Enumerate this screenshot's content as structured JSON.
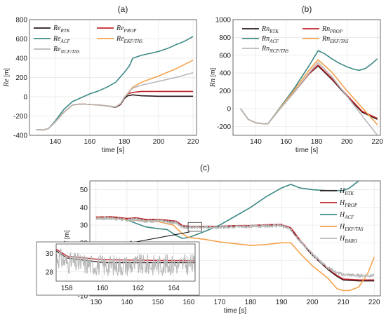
{
  "chart_data": [
    {
      "panel": "(a)",
      "type": "line",
      "xlabel": "time [s]",
      "ylabel": "Re [m]",
      "ylabel_var": "Re",
      "ylabel_unit": " [m]",
      "xlim": [
        125,
        222
      ],
      "ylim": [
        -400,
        800
      ],
      "xticks": [
        140,
        160,
        180,
        200,
        220
      ],
      "yticks": [
        -400,
        -200,
        0,
        200,
        400,
        600,
        800
      ],
      "grid": true,
      "legend": "top-left, two columns",
      "series": [
        {
          "name": "Re_RTK",
          "base": "Re",
          "sub": "RTK",
          "color": "#2a1a1a",
          "x": [
            129,
            133,
            136,
            140,
            145,
            150,
            155,
            160,
            165,
            170,
            175,
            178,
            180,
            182,
            185,
            190,
            200,
            210,
            220
          ],
          "y": [
            -340,
            -345,
            -330,
            -260,
            -160,
            -85,
            -75,
            -80,
            -85,
            -95,
            -110,
            -80,
            -20,
            10,
            20,
            10,
            5,
            5,
            5
          ]
        },
        {
          "name": "Re_PROP",
          "base": "Re",
          "sub": "PROP",
          "color": "#c0262d",
          "x": [
            129,
            133,
            136,
            140,
            145,
            150,
            155,
            160,
            165,
            170,
            175,
            178,
            180,
            182,
            185,
            190,
            200,
            210,
            220
          ],
          "y": [
            -340,
            -345,
            -330,
            -260,
            -160,
            -85,
            -75,
            -80,
            -85,
            -95,
            -105,
            -75,
            -10,
            30,
            45,
            55,
            55,
            55,
            55
          ]
        },
        {
          "name": "Re_ACF",
          "base": "Re",
          "sub": "ACF",
          "color": "#3e8a86",
          "x": [
            129,
            133,
            136,
            140,
            145,
            150,
            155,
            160,
            165,
            170,
            175,
            180,
            183,
            185,
            190,
            195,
            200,
            205,
            210,
            215,
            220
          ],
          "y": [
            -340,
            -345,
            -330,
            -250,
            -130,
            -50,
            -10,
            30,
            60,
            100,
            150,
            250,
            320,
            400,
            430,
            450,
            470,
            500,
            540,
            575,
            625
          ]
        },
        {
          "name": "Re_EKF/TAS",
          "base": "Re",
          "sub": "EKF/TAS",
          "color": "#f4a24d",
          "x": [
            129,
            133,
            136,
            140,
            145,
            150,
            155,
            160,
            165,
            170,
            175,
            178,
            180,
            185,
            190,
            200,
            210,
            220
          ],
          "y": [
            -340,
            -345,
            -330,
            -260,
            -160,
            -85,
            -75,
            -80,
            -85,
            -95,
            -105,
            -70,
            -10,
            100,
            150,
            215,
            290,
            380
          ]
        },
        {
          "name": "Re_NCF/TAS",
          "base": "Re",
          "sub": "NCF/TAS",
          "color": "#b8b8b8",
          "x": [
            129,
            133,
            136,
            140,
            145,
            150,
            155,
            160,
            165,
            170,
            175,
            178,
            180,
            185,
            190,
            200,
            210,
            220
          ],
          "y": [
            -340,
            -345,
            -330,
            -260,
            -160,
            -85,
            -75,
            -80,
            -85,
            -95,
            -105,
            -70,
            -10,
            90,
            120,
            160,
            200,
            250
          ]
        }
      ]
    },
    {
      "panel": "(b)",
      "type": "line",
      "xlabel": "time [s]",
      "ylabel": "Rn [m]",
      "ylabel_var": "Rn",
      "ylabel_unit": " [m]",
      "xlim": [
        125,
        222
      ],
      "ylim": [
        -300,
        1000
      ],
      "xticks": [
        140,
        160,
        180,
        200,
        220
      ],
      "yticks": [
        -200,
        0,
        200,
        400,
        600,
        800,
        1000
      ],
      "grid": true,
      "legend": "top, two columns",
      "series": [
        {
          "name": "Rn_RTK",
          "base": "Rn",
          "sub": "RTK",
          "color": "#2a1a1a",
          "x": [
            130,
            135,
            140,
            145,
            148,
            155,
            165,
            175,
            181,
            190,
            200,
            210,
            220
          ],
          "y": [
            0,
            -120,
            -160,
            -170,
            -170,
            -20,
            180,
            390,
            480,
            330,
            140,
            -40,
            -120
          ]
        },
        {
          "name": "Rn_PROP",
          "base": "Rn",
          "sub": "PROP",
          "color": "#c0262d",
          "x": [
            130,
            135,
            140,
            145,
            148,
            155,
            165,
            175,
            181,
            190,
            200,
            210,
            220
          ],
          "y": [
            0,
            -120,
            -160,
            -170,
            -170,
            -20,
            180,
            390,
            490,
            340,
            150,
            -30,
            -110
          ]
        },
        {
          "name": "Rn_ACF",
          "base": "Rn",
          "sub": "ACF",
          "color": "#3e8a86",
          "x": [
            130,
            135,
            140,
            145,
            148,
            155,
            165,
            175,
            181,
            185,
            190,
            195,
            200,
            205,
            208,
            212,
            216,
            220
          ],
          "y": [
            0,
            -120,
            -160,
            -170,
            -170,
            -10,
            220,
            480,
            650,
            620,
            560,
            510,
            470,
            440,
            430,
            450,
            500,
            560
          ]
        },
        {
          "name": "Rn_EKF/TAS",
          "base": "Rn",
          "sub": "EKF/TAS",
          "color": "#f4a24d",
          "x": [
            130,
            135,
            140,
            145,
            148,
            155,
            165,
            175,
            181,
            190,
            200,
            210,
            220
          ],
          "y": [
            0,
            -120,
            -160,
            -170,
            -170,
            -15,
            200,
            430,
            550,
            410,
            200,
            10,
            -180
          ]
        },
        {
          "name": "Rn_NCF/TAS",
          "base": "Rn",
          "sub": "NCF/TAS",
          "color": "#b8b8b8",
          "x": [
            130,
            135,
            140,
            145,
            148,
            155,
            165,
            175,
            181,
            190,
            200,
            210,
            220
          ],
          "y": [
            0,
            -120,
            -160,
            -170,
            -170,
            -20,
            180,
            400,
            520,
            360,
            140,
            -80,
            -300
          ]
        }
      ]
    },
    {
      "panel": "(c)",
      "type": "line",
      "xlabel": "time [s]",
      "ylabel": "H [m]",
      "ylabel_var": "H",
      "ylabel_unit": " [m]",
      "xlim": [
        128,
        222
      ],
      "ylim": [
        -10,
        55
      ],
      "xticks": [
        130,
        140,
        150,
        160,
        170,
        180,
        190,
        200,
        210,
        220
      ],
      "yticks": [
        -10,
        0,
        10,
        20,
        30,
        40,
        50
      ],
      "grid": true,
      "legend": "right, one column",
      "series": [
        {
          "name": "H_RTK",
          "base": "H",
          "sub": "RTK",
          "color": "#2a1a1a",
          "x": [
            130,
            135,
            138,
            140,
            143,
            146,
            150,
            153,
            156,
            158,
            160,
            165,
            170,
            175,
            180,
            185,
            190,
            193,
            196,
            200,
            205,
            208,
            210,
            215,
            220
          ],
          "y": [
            34.5,
            34.5,
            34,
            33.5,
            34,
            33,
            33,
            32.5,
            32,
            29.5,
            29,
            29,
            29,
            29.5,
            29.5,
            30,
            30,
            28,
            21,
            13,
            5,
            1,
            -1,
            -1.5,
            -1.5
          ]
        },
        {
          "name": "H_PROP",
          "base": "H",
          "sub": "PROP",
          "color": "#c0262d",
          "x": [
            130,
            135,
            138,
            140,
            143,
            146,
            150,
            153,
            156,
            158,
            160,
            165,
            170,
            175,
            180,
            185,
            190,
            193,
            196,
            200,
            205,
            208,
            210,
            215,
            220
          ],
          "y": [
            34.5,
            34.8,
            34.2,
            33.8,
            34.2,
            33.2,
            33.3,
            32.8,
            32.2,
            29.7,
            29.3,
            29.2,
            29.3,
            29.7,
            29.8,
            30.2,
            30.4,
            28.5,
            21.5,
            13.5,
            5.5,
            1.5,
            -0.5,
            -1,
            -1
          ]
        },
        {
          "name": "H_ACF",
          "base": "H",
          "sub": "ACF",
          "color": "#3e8a86",
          "x": [
            130,
            135,
            140,
            143,
            146,
            150,
            153,
            156,
            158,
            160,
            163,
            166,
            170,
            175,
            180,
            185,
            190,
            193,
            196,
            200,
            205,
            210,
            212,
            215,
            218,
            220
          ],
          "y": [
            34,
            34,
            33,
            31,
            29,
            28,
            27.5,
            24,
            22.5,
            23,
            25,
            27,
            30,
            35,
            40,
            46,
            51,
            53,
            51,
            50,
            49.5,
            49.5,
            51,
            55,
            58,
            60
          ]
        },
        {
          "name": "H_EKF/TAS",
          "base": "H",
          "sub": "EKF/TAS",
          "color": "#f4a24d",
          "x": [
            130,
            135,
            140,
            145,
            150,
            155,
            158,
            160,
            165,
            170,
            175,
            180,
            185,
            190,
            193,
            196,
            200,
            205,
            208,
            210,
            212,
            215,
            218,
            220
          ],
          "y": [
            34,
            34,
            33,
            32.5,
            32,
            30,
            25,
            23,
            22,
            20.5,
            19.5,
            18.5,
            19,
            20,
            20,
            14,
            7,
            0,
            -6,
            -7,
            -7,
            -5,
            3,
            12
          ]
        },
        {
          "name": "H_BARO",
          "base": "H",
          "sub": "BARO",
          "color": "#b8b8b8",
          "noise": 0.9,
          "x": [
            130,
            135,
            138,
            140,
            143,
            146,
            150,
            153,
            156,
            158,
            160,
            165,
            170,
            175,
            180,
            185,
            190,
            193,
            196,
            200,
            205,
            208,
            210,
            215,
            220
          ],
          "y": [
            33.8,
            33.8,
            33.3,
            32.8,
            33.3,
            32.3,
            32.3,
            31.8,
            31.3,
            29,
            28.7,
            28.8,
            28.9,
            29.2,
            29.3,
            29.6,
            29.7,
            27.5,
            21,
            13.5,
            6,
            3,
            2,
            1.5,
            1.5
          ]
        }
      ],
      "inset": {
        "xlim": [
          157.4,
          165.2
        ],
        "ylim": [
          27,
          31
        ],
        "xticks": [
          158,
          160,
          162,
          164
        ],
        "yticks": [
          28,
          30
        ],
        "zoom_box_x": [
          159.8,
          164.2
        ],
        "zoom_box_y": [
          26.5,
          31.5
        ]
      }
    }
  ]
}
